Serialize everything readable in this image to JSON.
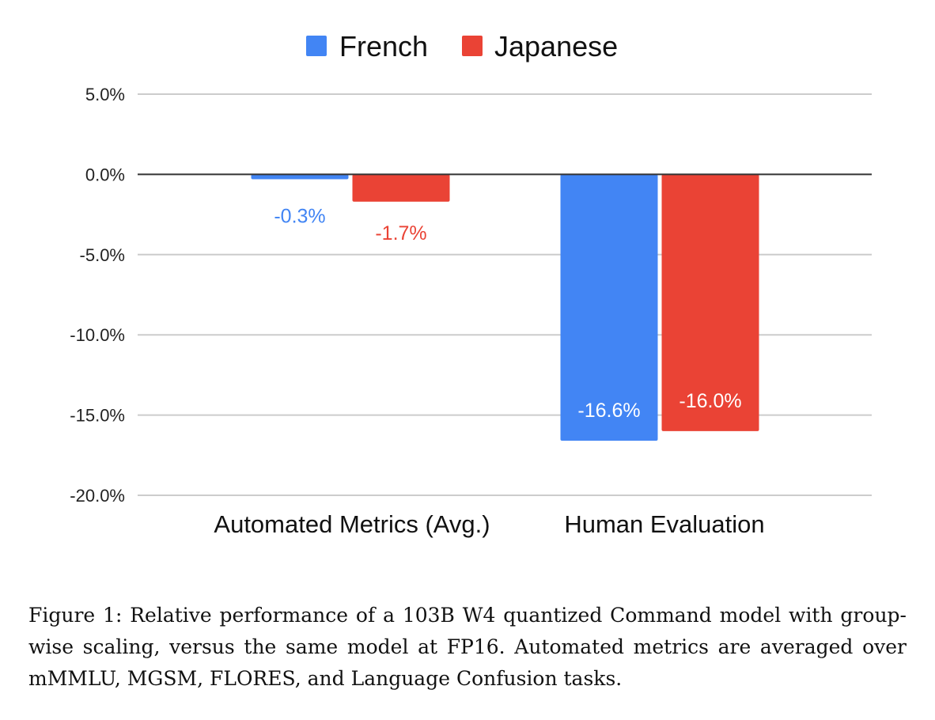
{
  "chart_data": {
    "type": "bar",
    "categories": [
      "Automated Metrics (Avg.)",
      "Human Evaluation"
    ],
    "series": [
      {
        "name": "French",
        "color": "#4285f4",
        "values": [
          -0.3,
          -16.6
        ],
        "labels": [
          "-0.3%",
          "-16.6%"
        ]
      },
      {
        "name": "Japanese",
        "color": "#ea4335",
        "values": [
          -1.7,
          -16.0
        ],
        "labels": [
          "-1.7%",
          "-16.0%"
        ]
      }
    ],
    "ylim": [
      -20,
      5
    ],
    "yticks": [
      5,
      0,
      -5,
      -10,
      -15,
      -20
    ],
    "ytick_labels": [
      "5.0%",
      "0.0%",
      "-5.0%",
      "-10.0%",
      "-15.0%",
      "-20.0%"
    ],
    "legend_position": "top-center",
    "grid": true
  },
  "caption": "Figure 1: Relative performance of a 103B W4 quantized Command model with group-wise scaling, versus the same model at FP16. Automated metrics are averaged over mMMLU, MGSM, FLORES, and Language Confusion tasks."
}
